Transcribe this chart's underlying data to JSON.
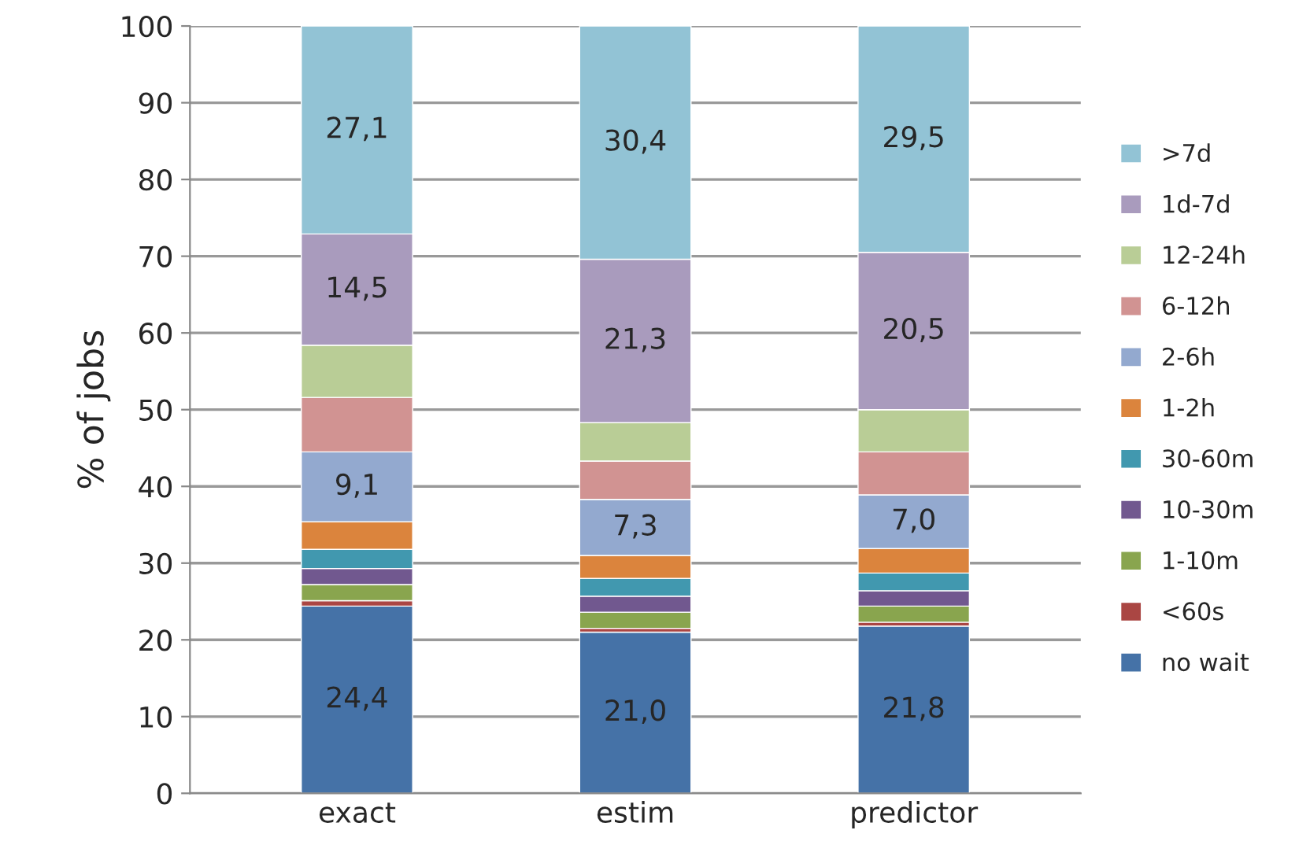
{
  "chart_data": {
    "type": "bar",
    "stacked": true,
    "ylabel": "% of jobs",
    "categories": [
      "exact",
      "estim",
      "predictor"
    ],
    "series": [
      {
        "name": "no wait",
        "color": "#4572a7",
        "values": [
          24.4,
          21.0,
          21.8
        ],
        "value_labels": [
          "24,4",
          "21,0",
          "21,8"
        ]
      },
      {
        "name": "<60s",
        "color": "#aa4643",
        "values": [
          0.7,
          0.5,
          0.5
        ]
      },
      {
        "name": "1-10m",
        "color": "#89a54e",
        "values": [
          2.1,
          2.1,
          2.1
        ]
      },
      {
        "name": "10-30m",
        "color": "#71588f",
        "values": [
          2.1,
          2.1,
          2.0
        ]
      },
      {
        "name": "30-60m",
        "color": "#4198af",
        "values": [
          2.5,
          2.3,
          2.3
        ]
      },
      {
        "name": "1-2h",
        "color": "#db843d",
        "values": [
          3.6,
          3.0,
          3.2
        ]
      },
      {
        "name": "2-6h",
        "color": "#93a9cf",
        "values": [
          9.1,
          7.3,
          7.0
        ],
        "value_labels": [
          "9,1",
          "7,3",
          "7,0"
        ]
      },
      {
        "name": "6-12h",
        "color": "#d19392",
        "values": [
          7.1,
          5.0,
          5.6
        ]
      },
      {
        "name": "12-24h",
        "color": "#b9cd96",
        "values": [
          6.8,
          5.0,
          5.5
        ]
      },
      {
        "name": "1d-7d",
        "color": "#a99bbd",
        "values": [
          14.5,
          21.3,
          20.5
        ],
        "value_labels": [
          "14,5",
          "21,3",
          "20,5"
        ]
      },
      {
        "name": ">7d",
        "color": "#92c3d5",
        "values": [
          27.1,
          30.4,
          29.5
        ],
        "value_labels": [
          "27,1",
          "30,4",
          "29,5"
        ]
      }
    ],
    "ylim": [
      0,
      100
    ],
    "yticks": [
      0,
      10,
      20,
      30,
      40,
      50,
      60,
      70,
      80,
      90,
      100
    ],
    "grid": "y",
    "legend": "right"
  }
}
